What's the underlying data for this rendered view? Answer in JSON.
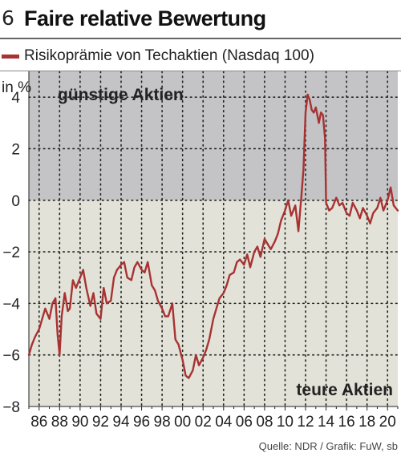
{
  "header": {
    "number": "6",
    "title": "Faire relative Bewertung"
  },
  "footer": {
    "source": "Quelle: NDR / Grafik: FuW, sb"
  },
  "colors": {
    "line": "#a83232",
    "upper_zone": "#c4c3c6",
    "lower_zone": "#e2e2d8"
  },
  "chart_data": {
    "type": "line",
    "title": "Faire relative Bewertung",
    "ylabel": "in %",
    "ylim": [
      -8,
      5
    ],
    "xlim": [
      1985.0,
      2021.0
    ],
    "yticks": [
      -8,
      -6,
      -4,
      -2,
      0,
      2,
      4
    ],
    "ytick_labels": [
      "−8",
      "−6",
      "−4",
      "−2",
      "0",
      "2",
      "4"
    ],
    "xticks": [
      1986,
      1988,
      1990,
      1992,
      1994,
      1996,
      1998,
      2000,
      2002,
      2004,
      2006,
      2008,
      2010,
      2012,
      2014,
      2016,
      2018,
      2020
    ],
    "xtick_labels": [
      "86",
      "88",
      "90",
      "92",
      "94",
      "96",
      "98",
      "00",
      "02",
      "04",
      "06",
      "08",
      "10",
      "12",
      "14",
      "16",
      "18",
      "20"
    ],
    "grid": true,
    "legend": "top-left",
    "annotations": {
      "upper": "günstige Aktien",
      "lower": "teure Aktien"
    },
    "series": [
      {
        "name": "Risikoprämie von Techaktien (Nasdaq 100)",
        "x": [
          1985.0,
          1985.3,
          1985.6,
          1986.0,
          1986.3,
          1986.6,
          1987.0,
          1987.3,
          1987.6,
          1987.8,
          1988.0,
          1988.2,
          1988.5,
          1988.8,
          1989.0,
          1989.3,
          1989.6,
          1990.0,
          1990.3,
          1990.6,
          1991.0,
          1991.3,
          1991.6,
          1992.0,
          1992.3,
          1992.6,
          1993.0,
          1993.3,
          1993.6,
          1994.0,
          1994.3,
          1994.6,
          1995.0,
          1995.3,
          1995.6,
          1996.0,
          1996.3,
          1996.6,
          1997.0,
          1997.3,
          1997.6,
          1998.0,
          1998.3,
          1998.6,
          1999.0,
          1999.3,
          1999.6,
          2000.0,
          2000.3,
          2000.6,
          2001.0,
          2001.3,
          2001.6,
          2002.0,
          2002.3,
          2002.6,
          2003.0,
          2003.3,
          2003.6,
          2004.0,
          2004.3,
          2004.6,
          2005.0,
          2005.3,
          2005.6,
          2006.0,
          2006.3,
          2006.6,
          2007.0,
          2007.3,
          2007.6,
          2008.0,
          2008.3,
          2008.6,
          2009.0,
          2009.3,
          2009.6,
          2010.0,
          2010.3,
          2010.6,
          2011.0,
          2011.3,
          2011.6,
          2011.8,
          2012.0,
          2012.2,
          2012.4,
          2012.6,
          2012.8,
          2013.0,
          2013.3,
          2013.5,
          2013.7,
          2013.9,
          2014.0,
          2014.3,
          2014.6,
          2015.0,
          2015.3,
          2015.6,
          2016.0,
          2016.3,
          2016.6,
          2017.0,
          2017.3,
          2017.6,
          2018.0,
          2018.3,
          2018.6,
          2019.0,
          2019.3,
          2019.6,
          2020.0,
          2020.3,
          2020.6,
          2021.0
        ],
        "values": [
          -6.0,
          -5.6,
          -5.3,
          -5.0,
          -4.6,
          -4.2,
          -4.6,
          -4.0,
          -3.8,
          -5.2,
          -6.0,
          -4.5,
          -3.6,
          -4.3,
          -4.2,
          -3.1,
          -3.4,
          -3.0,
          -2.7,
          -3.4,
          -4.1,
          -3.6,
          -4.4,
          -4.6,
          -3.4,
          -4.0,
          -3.9,
          -3.0,
          -2.7,
          -2.5,
          -2.4,
          -3.0,
          -3.1,
          -2.6,
          -2.4,
          -2.7,
          -2.8,
          -2.4,
          -3.3,
          -3.5,
          -3.9,
          -4.2,
          -4.5,
          -4.5,
          -4.0,
          -5.4,
          -5.6,
          -6.2,
          -6.8,
          -6.9,
          -6.6,
          -6.0,
          -6.4,
          -6.1,
          -5.8,
          -5.4,
          -4.6,
          -4.2,
          -3.8,
          -3.6,
          -3.3,
          -2.9,
          -2.8,
          -2.4,
          -2.3,
          -2.5,
          -2.1,
          -2.6,
          -2.0,
          -1.8,
          -2.2,
          -1.5,
          -1.7,
          -1.9,
          -1.6,
          -1.3,
          -0.8,
          -0.4,
          0.0,
          -0.6,
          -0.2,
          -1.2,
          0.2,
          1.2,
          3.4,
          4.1,
          3.9,
          3.5,
          3.4,
          3.6,
          3.0,
          3.4,
          3.3,
          2.4,
          -0.1,
          -0.4,
          -0.3,
          0.1,
          -0.2,
          -0.1,
          -0.5,
          -0.6,
          -0.1,
          -0.4,
          -0.7,
          -0.3,
          -0.6,
          -0.9,
          -0.5,
          -0.3,
          0.1,
          -0.4,
          0.0,
          0.5,
          -0.2,
          -0.4
        ]
      }
    ]
  }
}
